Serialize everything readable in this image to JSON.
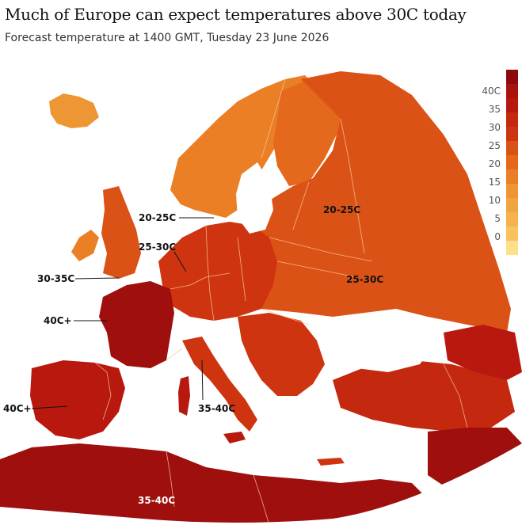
{
  "header": {
    "title": "Much of Europe can expect temperatures above 30C today",
    "subtitle": "Forecast temperature at 1400 GMT, Tuesday 23 June 2026"
  },
  "legend": {
    "labels": [
      "40C",
      "35",
      "30",
      "25",
      "20",
      "15",
      "10",
      "5",
      "0"
    ],
    "colors": [
      "#8c0a0c",
      "#b8180e",
      "#cf3410",
      "#db5216",
      "#e4691c",
      "#ea7f26",
      "#ef9634",
      "#f5b24e",
      "#fbd16a",
      "#fde08a"
    ]
  },
  "annotations": [
    {
      "text": "20-25C"
    },
    {
      "text": "20-25C"
    },
    {
      "text": "25-30C"
    },
    {
      "text": "25-30C"
    },
    {
      "text": "30-35C"
    },
    {
      "text": "40C+"
    },
    {
      "text": "40C+"
    },
    {
      "text": "35-40C"
    },
    {
      "text": "35-40C"
    }
  ],
  "colors": {
    "sea": "#ffffff",
    "land_cool": "#ea7f26",
    "land_mid": "#db5216",
    "land_warm": "#c4280e",
    "land_hot": "#9e0f0e",
    "borders": "#f6c79a"
  }
}
